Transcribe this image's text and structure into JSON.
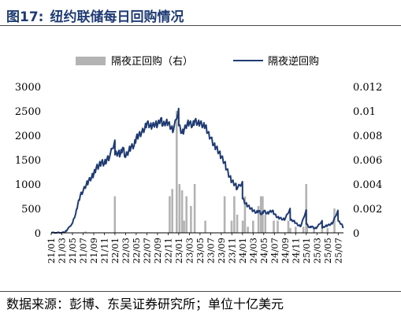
{
  "figure": {
    "label": "图17:",
    "title": "纽约联储每日回购情况"
  },
  "source": "数据来源：彭博、东吴证券研究所；单位十亿美元",
  "colors": {
    "line": "#1f3b73",
    "bar": "#b3b3b3",
    "title": "#1f3b73"
  },
  "chart_data": {
    "type": "line+bar",
    "legend": [
      {
        "name": "隔夜正回购（右）",
        "kind": "bar",
        "color": "#b3b3b3"
      },
      {
        "name": "隔夜逆回购",
        "kind": "line",
        "color": "#1f3b73"
      }
    ],
    "legend_position": "top-center",
    "left_axis": {
      "ylim": [
        0,
        3000
      ],
      "ticks": [
        "0",
        "500",
        "1000",
        "1500",
        "2000",
        "2500",
        "3000"
      ]
    },
    "right_axis": {
      "ylim": [
        0,
        0.012
      ],
      "ticks": [
        "0",
        "0.002",
        "0.004",
        "0.006",
        "0.008",
        "0.01",
        "0.012"
      ]
    },
    "x_ticks": [
      "21/01",
      "21/03",
      "21/05",
      "21/07",
      "21/09",
      "21/11",
      "22/01",
      "22/03",
      "22/05",
      "22/07",
      "22/09",
      "22/11",
      "23/01",
      "23/03",
      "23/05",
      "23/07",
      "23/09",
      "23/11",
      "24/01",
      "24/03",
      "24/05",
      "24/07",
      "24/09",
      "24/11",
      "25/01",
      "25/03",
      "25/05",
      "25/07"
    ],
    "x_range": [
      "2021-01",
      "2025-08"
    ],
    "series": [
      {
        "name": "隔夜逆回购",
        "axis": "left",
        "points": [
          [
            "2021-01",
            0
          ],
          [
            "2021-02",
            0
          ],
          [
            "2021-03",
            2
          ],
          [
            "2021-03-20",
            20
          ],
          [
            "2021-04",
            60
          ],
          [
            "2021-05",
            200
          ],
          [
            "2021-05-20",
            400
          ],
          [
            "2021-06",
            580
          ],
          [
            "2021-06-15",
            760
          ],
          [
            "2021-07",
            860
          ],
          [
            "2021-07-20",
            1000
          ],
          [
            "2021-08",
            1050
          ],
          [
            "2021-08-20",
            1150
          ],
          [
            "2021-09",
            1200
          ],
          [
            "2021-09-15",
            1330
          ],
          [
            "2021-10",
            1380
          ],
          [
            "2021-10-15",
            1450
          ],
          [
            "2021-11",
            1420
          ],
          [
            "2021-11-15",
            1500
          ],
          [
            "2021-12",
            1560
          ],
          [
            "2021-12-31",
            1900
          ],
          [
            "2022-01",
            1600
          ],
          [
            "2022-01-20",
            1650
          ],
          [
            "2022-02",
            1600
          ],
          [
            "2022-02-15",
            1750
          ],
          [
            "2022-03",
            1550
          ],
          [
            "2022-03-20",
            1700
          ],
          [
            "2022-04",
            1750
          ],
          [
            "2022-04-20",
            1800
          ],
          [
            "2022-05",
            1950
          ],
          [
            "2022-05-15",
            2000
          ],
          [
            "2022-06",
            2050
          ],
          [
            "2022-06-20",
            2150
          ],
          [
            "2022-07",
            2250
          ],
          [
            "2022-07-20",
            2200
          ],
          [
            "2022-08",
            2180
          ],
          [
            "2022-08-20",
            2250
          ],
          [
            "2022-09",
            2200
          ],
          [
            "2022-09-20",
            2350
          ],
          [
            "2022-10",
            2200
          ],
          [
            "2022-10-20",
            2280
          ],
          [
            "2022-11",
            2250
          ],
          [
            "2022-11-20",
            2150
          ],
          [
            "2022-12",
            2100
          ],
          [
            "2022-12-31",
            2550
          ],
          [
            "2023-01",
            2200
          ],
          [
            "2023-01-20",
            2050
          ],
          [
            "2023-02",
            2100
          ],
          [
            "2023-02-20",
            2250
          ],
          [
            "2023-03",
            2250
          ],
          [
            "2023-03-20",
            2200
          ],
          [
            "2023-04",
            2300
          ],
          [
            "2023-04-20",
            2250
          ],
          [
            "2023-05",
            2250
          ],
          [
            "2023-05-20",
            2200
          ],
          [
            "2023-06",
            2200
          ],
          [
            "2023-06-15",
            2050
          ],
          [
            "2023-07",
            1950
          ],
          [
            "2023-07-20",
            1800
          ],
          [
            "2023-08",
            1750
          ],
          [
            "2023-08-20",
            1650
          ],
          [
            "2023-09",
            1550
          ],
          [
            "2023-09-20",
            1450
          ],
          [
            "2023-10",
            1300
          ],
          [
            "2023-10-20",
            1150
          ],
          [
            "2023-11",
            1050
          ],
          [
            "2023-11-20",
            1000
          ],
          [
            "2023-12",
            900
          ],
          [
            "2023-12-31",
            1050
          ],
          [
            "2024-01",
            700
          ],
          [
            "2024-01-20",
            600
          ],
          [
            "2024-02",
            550
          ],
          [
            "2024-02-20",
            500
          ],
          [
            "2024-03",
            450
          ],
          [
            "2024-03-20",
            420
          ],
          [
            "2024-04",
            450
          ],
          [
            "2024-04-20",
            380
          ],
          [
            "2024-05",
            450
          ],
          [
            "2024-05-20",
            400
          ],
          [
            "2024-06",
            420
          ],
          [
            "2024-06-20",
            460
          ],
          [
            "2024-07",
            380
          ],
          [
            "2024-07-20",
            320
          ],
          [
            "2024-08",
            300
          ],
          [
            "2024-08-20",
            280
          ],
          [
            "2024-09",
            280
          ],
          [
            "2024-09-30",
            500
          ],
          [
            "2024-10",
            260
          ],
          [
            "2024-10-20",
            250
          ],
          [
            "2024-11",
            200
          ],
          [
            "2024-11-20",
            150
          ],
          [
            "2024-12",
            140
          ],
          [
            "2024-12-31",
            470
          ],
          [
            "2025-01",
            180
          ],
          [
            "2025-01-20",
            110
          ],
          [
            "2025-02",
            130
          ],
          [
            "2025-02-20",
            90
          ],
          [
            "2025-03",
            110
          ],
          [
            "2025-03-31",
            250
          ],
          [
            "2025-04",
            100
          ],
          [
            "2025-04-20",
            140
          ],
          [
            "2025-05",
            150
          ],
          [
            "2025-05-20",
            180
          ],
          [
            "2025-06",
            210
          ],
          [
            "2025-06-30",
            460
          ],
          [
            "2025-07",
            240
          ],
          [
            "2025-07-20",
            180
          ],
          [
            "2025-08",
            100
          ]
        ]
      },
      {
        "name": "隔夜正回购（右）",
        "axis": "right",
        "points": [
          [
            "2021-07-15",
            0.0001
          ],
          [
            "2021-12-31",
            0.003
          ],
          [
            "2022-11-10",
            0.003
          ],
          [
            "2022-11-25",
            0.0036
          ],
          [
            "2022-12-20",
            0.01
          ],
          [
            "2023-01-05",
            0.004
          ],
          [
            "2023-01-20",
            0.0035
          ],
          [
            "2023-02-01",
            0.001
          ],
          [
            "2023-02-15",
            0.003
          ],
          [
            "2023-03-10",
            0.0022
          ],
          [
            "2023-04-01",
            0.004
          ],
          [
            "2023-06-01",
            0.001
          ],
          [
            "2023-09-20",
            0.003
          ],
          [
            "2023-10-30",
            0.001
          ],
          [
            "2023-11-15",
            0.003
          ],
          [
            "2023-12-01",
            0.0015
          ],
          [
            "2024-01-02",
            0.001
          ],
          [
            "2024-01-15",
            0.003
          ],
          [
            "2024-02-01",
            0.0005
          ],
          [
            "2024-03-01",
            0.001
          ],
          [
            "2024-04-01",
            0.0022
          ],
          [
            "2024-04-15",
            0.003
          ],
          [
            "2024-04-25",
            0.003
          ],
          [
            "2024-05-10",
            0.0015
          ],
          [
            "2024-06-28",
            0.001
          ],
          [
            "2024-07-20",
            0.001
          ],
          [
            "2024-09-20",
            0.001
          ],
          [
            "2024-10-01",
            0.0004
          ],
          [
            "2024-11-01",
            0.0005
          ],
          [
            "2024-12-15",
            0.0005
          ],
          [
            "2024-12-31",
            0.004
          ],
          [
            "2025-01-05",
            0.0008
          ],
          [
            "2025-02-15",
            0.0005
          ],
          [
            "2025-03-31",
            0.0006
          ],
          [
            "2025-05-01",
            0.0004
          ],
          [
            "2025-06-10",
            0.002
          ]
        ]
      }
    ]
  }
}
